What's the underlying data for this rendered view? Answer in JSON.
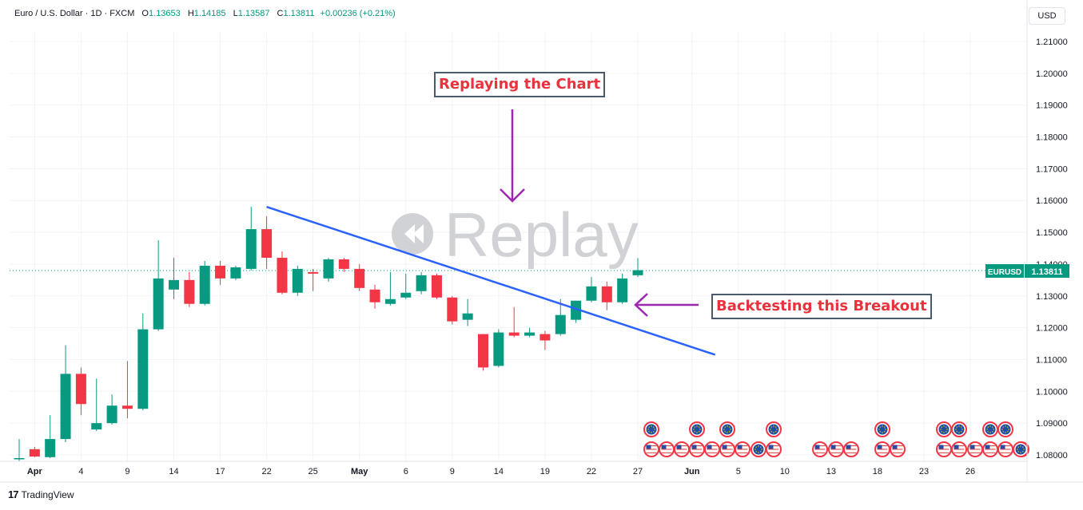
{
  "legend": {
    "symbol": "Euro / U.S. Dollar · 1D · FXCM",
    "open_label": "O",
    "open": "1.13653",
    "high_label": "H",
    "high": "1.14185",
    "low_label": "L",
    "low": "1.13587",
    "close_label": "C",
    "close": "1.13811",
    "change": "+0.00236 (+0.21%)"
  },
  "currency_button": "USD",
  "price_tag": {
    "ticker": "EURUSD",
    "price": "1.13811"
  },
  "watermark": "Replay",
  "annotations": {
    "replay_note": "Replaying the Chart",
    "breakout_note": "Backtesting this Breakout"
  },
  "branding": {
    "mark": "17",
    "name": "TradingView"
  },
  "colors": {
    "up": "#089981",
    "down": "#f23645",
    "trendline": "#2962ff",
    "arrow": "#9c27b0",
    "annotation_text": "#e8323c",
    "grid": "#f0f3fa"
  },
  "chart_data": {
    "type": "candlestick",
    "title": "Euro / U.S. Dollar · 1D · FXCM",
    "y_ticks": [
      "1.21000",
      "1.20000",
      "1.19000",
      "1.18000",
      "1.17000",
      "1.16000",
      "1.15000",
      "1.14000",
      "1.13000",
      "1.12000",
      "1.11000",
      "1.10000",
      "1.09000",
      "1.08000"
    ],
    "ylim": [
      1.0765,
      1.2165
    ],
    "x_ticks": [
      {
        "label": "Apr",
        "i": 1,
        "bold": true
      },
      {
        "label": "4",
        "i": 4
      },
      {
        "label": "9",
        "i": 7
      },
      {
        "label": "14",
        "i": 10
      },
      {
        "label": "17",
        "i": 13
      },
      {
        "label": "22",
        "i": 16
      },
      {
        "label": "25",
        "i": 19
      },
      {
        "label": "May",
        "i": 22,
        "bold": true
      },
      {
        "label": "6",
        "i": 25
      },
      {
        "label": "9",
        "i": 28
      },
      {
        "label": "14",
        "i": 31
      },
      {
        "label": "19",
        "i": 34
      },
      {
        "label": "22",
        "i": 37
      },
      {
        "label": "27",
        "i": 40
      },
      {
        "label": "Jun",
        "i": 43.5,
        "bold": true
      },
      {
        "label": "5",
        "i": 46.5
      },
      {
        "label": "10",
        "i": 49.5
      },
      {
        "label": "13",
        "i": 52.5
      },
      {
        "label": "18",
        "i": 55.5
      },
      {
        "label": "23",
        "i": 58.5
      },
      {
        "label": "26",
        "i": 61.5
      }
    ],
    "candles": [
      {
        "o": 1.079,
        "h": 1.085,
        "l": 1.078,
        "c": 1.079
      },
      {
        "o": 1.0818,
        "h": 1.0825,
        "l": 1.0793,
        "c": 1.0795
      },
      {
        "o": 1.0793,
        "h": 1.0925,
        "l": 1.079,
        "c": 1.085
      },
      {
        "o": 1.085,
        "h": 1.1145,
        "l": 1.084,
        "c": 1.1055
      },
      {
        "o": 1.1055,
        "h": 1.1075,
        "l": 1.0925,
        "c": 1.096
      },
      {
        "o": 1.088,
        "h": 1.104,
        "l": 1.0875,
        "c": 1.09
      },
      {
        "o": 1.09,
        "h": 1.099,
        "l": 1.0895,
        "c": 1.0955
      },
      {
        "o": 1.0955,
        "h": 1.1095,
        "l": 1.0915,
        "c": 1.0945
      },
      {
        "o": 1.0945,
        "h": 1.1245,
        "l": 1.094,
        "c": 1.1195
      },
      {
        "o": 1.1195,
        "h": 1.1475,
        "l": 1.119,
        "c": 1.1355
      },
      {
        "o": 1.132,
        "h": 1.142,
        "l": 1.129,
        "c": 1.135
      },
      {
        "o": 1.135,
        "h": 1.1375,
        "l": 1.1265,
        "c": 1.1275
      },
      {
        "o": 1.1275,
        "h": 1.141,
        "l": 1.127,
        "c": 1.1395
      },
      {
        "o": 1.1395,
        "h": 1.141,
        "l": 1.1335,
        "c": 1.1355
      },
      {
        "o": 1.1355,
        "h": 1.1395,
        "l": 1.135,
        "c": 1.139
      },
      {
        "o": 1.1385,
        "h": 1.158,
        "l": 1.138,
        "c": 1.151
      },
      {
        "o": 1.151,
        "h": 1.155,
        "l": 1.1385,
        "c": 1.142
      },
      {
        "o": 1.142,
        "h": 1.144,
        "l": 1.1305,
        "c": 1.131
      },
      {
        "o": 1.131,
        "h": 1.1395,
        "l": 1.13,
        "c": 1.1385
      },
      {
        "o": 1.1375,
        "h": 1.1385,
        "l": 1.1315,
        "c": 1.137
      },
      {
        "o": 1.1355,
        "h": 1.142,
        "l": 1.1345,
        "c": 1.1415
      },
      {
        "o": 1.1415,
        "h": 1.142,
        "l": 1.1375,
        "c": 1.1385
      },
      {
        "o": 1.1385,
        "h": 1.14,
        "l": 1.1315,
        "c": 1.1325
      },
      {
        "o": 1.132,
        "h": 1.1335,
        "l": 1.126,
        "c": 1.128
      },
      {
        "o": 1.1275,
        "h": 1.1375,
        "l": 1.127,
        "c": 1.129
      },
      {
        "o": 1.1295,
        "h": 1.137,
        "l": 1.129,
        "c": 1.131
      },
      {
        "o": 1.1315,
        "h": 1.1375,
        "l": 1.1305,
        "c": 1.1365
      },
      {
        "o": 1.1365,
        "h": 1.137,
        "l": 1.129,
        "c": 1.1295
      },
      {
        "o": 1.1295,
        "h": 1.13,
        "l": 1.121,
        "c": 1.122
      },
      {
        "o": 1.1225,
        "h": 1.129,
        "l": 1.1205,
        "c": 1.1245
      },
      {
        "o": 1.118,
        "h": 1.118,
        "l": 1.1065,
        "c": 1.1075
      },
      {
        "o": 1.108,
        "h": 1.1195,
        "l": 1.1075,
        "c": 1.1185
      },
      {
        "o": 1.1185,
        "h": 1.1265,
        "l": 1.117,
        "c": 1.1175
      },
      {
        "o": 1.1175,
        "h": 1.12,
        "l": 1.117,
        "c": 1.1185
      },
      {
        "o": 1.118,
        "h": 1.119,
        "l": 1.113,
        "c": 1.116
      },
      {
        "o": 1.118,
        "h": 1.129,
        "l": 1.1175,
        "c": 1.124
      },
      {
        "o": 1.1225,
        "h": 1.1285,
        "l": 1.1215,
        "c": 1.1285
      },
      {
        "o": 1.1285,
        "h": 1.136,
        "l": 1.128,
        "c": 1.133
      },
      {
        "o": 1.133,
        "h": 1.1345,
        "l": 1.1255,
        "c": 1.128
      },
      {
        "o": 1.128,
        "h": 1.137,
        "l": 1.1275,
        "c": 1.1355
      },
      {
        "o": 1.1365,
        "h": 1.1419,
        "l": 1.1359,
        "c": 1.1381
      }
    ],
    "trendline": {
      "from": {
        "i": 16,
        "price": 1.158
      },
      "to": {
        "i": 45,
        "price": 1.1115
      }
    },
    "current_price": 1.13811,
    "events": {
      "top_row": [
        "eu",
        "eu",
        "eu",
        "eu",
        "eu",
        "eu",
        "eu",
        "eu",
        "eu"
      ],
      "bottom_row": [
        "us",
        "us",
        "us",
        "us",
        "us",
        "us",
        "us",
        "eu",
        "us",
        "us",
        "us",
        "us",
        "us",
        "us",
        "us",
        "us",
        "us",
        "us",
        "us",
        "us",
        "eu"
      ]
    }
  }
}
